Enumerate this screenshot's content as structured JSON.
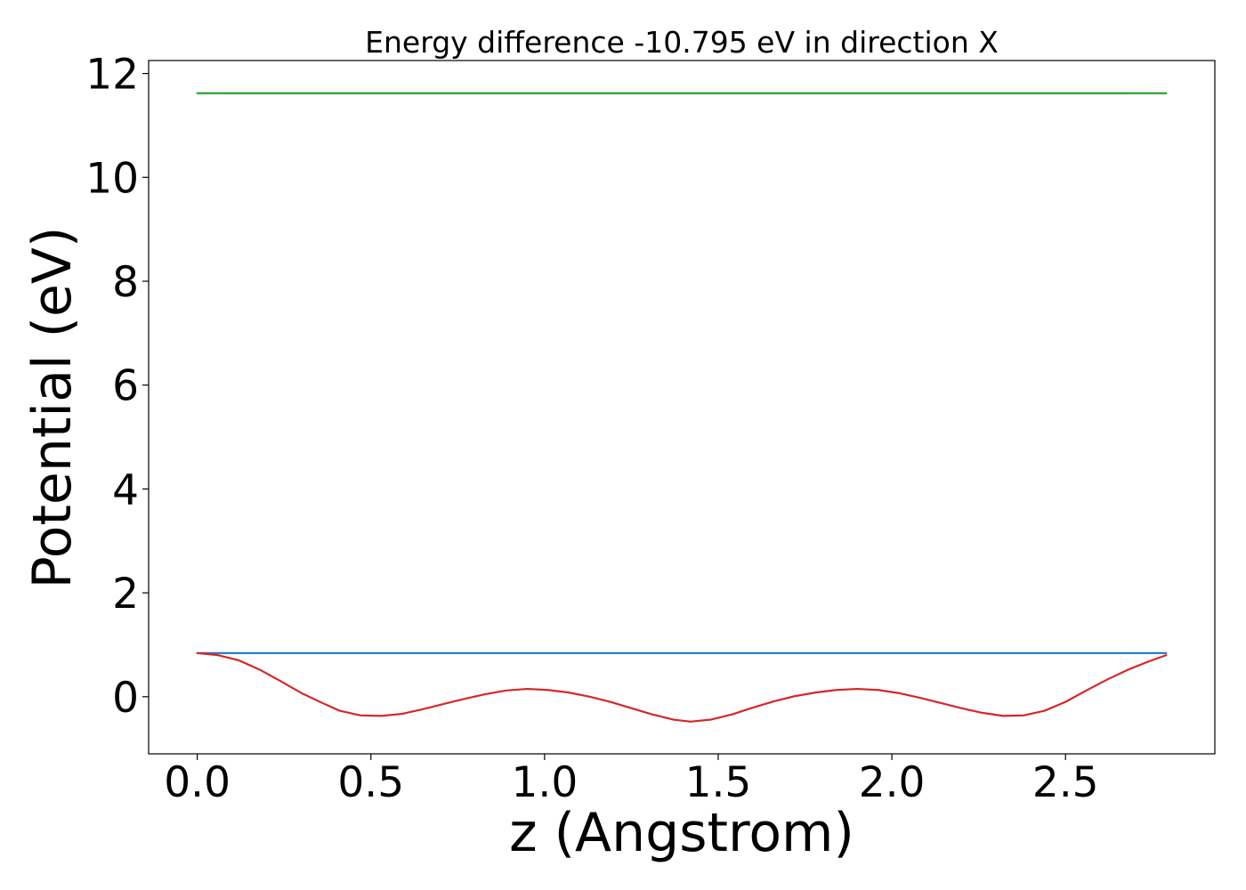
{
  "chart_data": {
    "type": "line",
    "title": "Energy difference -10.795 eV in direction X",
    "xlabel": "z (Angstrom)",
    "ylabel": "Potential (eV)",
    "xlim": [
      -0.14,
      2.93
    ],
    "ylim": [
      -1.1,
      12.25
    ],
    "x_ticks": [
      {
        "value": 0.0,
        "label": "0.0"
      },
      {
        "value": 0.5,
        "label": "0.5"
      },
      {
        "value": 1.0,
        "label": "1.0"
      },
      {
        "value": 1.5,
        "label": "1.5"
      },
      {
        "value": 2.0,
        "label": "2.0"
      },
      {
        "value": 2.5,
        "label": "2.5"
      }
    ],
    "y_ticks": [
      {
        "value": 0,
        "label": "0"
      },
      {
        "value": 2,
        "label": "2"
      },
      {
        "value": 4,
        "label": "4"
      },
      {
        "value": 6,
        "label": "6"
      },
      {
        "value": 8,
        "label": "8"
      },
      {
        "value": 10,
        "label": "10"
      },
      {
        "value": 12,
        "label": "12"
      }
    ],
    "grid": false,
    "series": [
      {
        "color": "#2ca02c",
        "x": [
          0.0,
          2.79
        ],
        "y": [
          11.62,
          11.62
        ]
      },
      {
        "color": "#1f77b4",
        "x": [
          0.0,
          2.79
        ],
        "y": [
          0.84,
          0.84
        ]
      },
      {
        "color": "#d62728",
        "x": [
          0.0,
          0.06,
          0.12,
          0.18,
          0.24,
          0.3,
          0.36,
          0.41,
          0.47,
          0.53,
          0.59,
          0.65,
          0.71,
          0.77,
          0.83,
          0.89,
          0.95,
          1.01,
          1.07,
          1.13,
          1.19,
          1.25,
          1.31,
          1.37,
          1.42,
          1.48,
          1.54,
          1.6,
          1.66,
          1.72,
          1.78,
          1.84,
          1.9,
          1.96,
          2.02,
          2.08,
          2.14,
          2.2,
          2.26,
          2.32,
          2.38,
          2.44,
          2.5,
          2.56,
          2.62,
          2.68,
          2.74,
          2.79
        ],
        "y": [
          0.84,
          0.8,
          0.7,
          0.52,
          0.3,
          0.07,
          -0.12,
          -0.27,
          -0.36,
          -0.37,
          -0.33,
          -0.24,
          -0.14,
          -0.04,
          0.05,
          0.12,
          0.15,
          0.13,
          0.08,
          0.0,
          -0.1,
          -0.22,
          -0.34,
          -0.44,
          -0.48,
          -0.44,
          -0.34,
          -0.21,
          -0.09,
          0.01,
          0.08,
          0.13,
          0.15,
          0.13,
          0.07,
          -0.02,
          -0.12,
          -0.22,
          -0.31,
          -0.37,
          -0.36,
          -0.27,
          -0.1,
          0.12,
          0.33,
          0.52,
          0.68,
          0.8
        ]
      }
    ]
  }
}
